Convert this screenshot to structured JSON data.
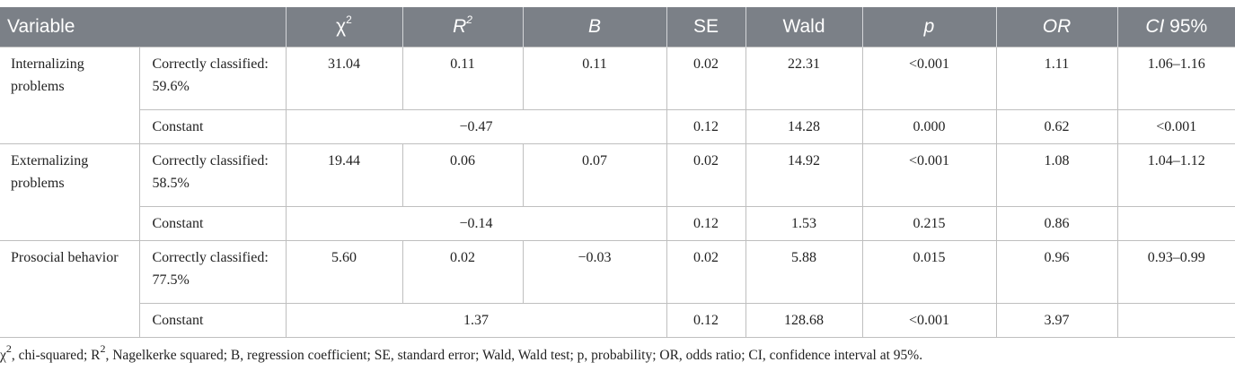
{
  "headers": {
    "variable": "Variable",
    "chi_symbol": "χ",
    "chi_sup": "2",
    "r_symbol": "R",
    "r_sup": "2",
    "b": "B",
    "se": "SE",
    "wald": "Wald",
    "p": "p",
    "or": "OR",
    "ci_italic": "CI",
    "ci_rest": " 95%"
  },
  "groups": [
    {
      "variable": "Internalizing problems",
      "row1": {
        "label": "Correctly classified: 59.6%",
        "chi2": "31.04",
        "r2": "0.11",
        "b": "0.11",
        "se": "0.02",
        "wald": "22.31",
        "p": "<0.001",
        "or": "1.11",
        "ci": "1.06–1.16"
      },
      "row2": {
        "label": "Constant",
        "b": "−0.47",
        "se": "0.12",
        "wald": "14.28",
        "p": "0.000",
        "or": "0.62",
        "ci": "<0.001"
      }
    },
    {
      "variable": "Externalizing problems",
      "row1": {
        "label": "Correctly classified: 58.5%",
        "chi2": "19.44",
        "r2": "0.06",
        "b": "0.07",
        "se": "0.02",
        "wald": "14.92",
        "p": "<0.001",
        "or": "1.08",
        "ci": "1.04–1.12"
      },
      "row2": {
        "label": "Constant",
        "b": "−0.14",
        "se": "0.12",
        "wald": "1.53",
        "p": "0.215",
        "or": "0.86",
        "ci": ""
      }
    },
    {
      "variable": "Prosocial behavior",
      "row1": {
        "label": "Correctly classified: 77.5%",
        "chi2": "5.60",
        "r2": "0.02",
        "b": "−0.03",
        "se": "0.02",
        "wald": "5.88",
        "p": "0.015",
        "or": "0.96",
        "ci": "0.93–0.99"
      },
      "row2": {
        "label": "Constant",
        "b": "1.37",
        "se": "0.12",
        "wald": "128.68",
        "p": "<0.001",
        "or": "3.97",
        "ci": ""
      }
    }
  ],
  "footnote": {
    "chi": "χ",
    "t1": ", chi-squared; R",
    "t2": ", Nagelkerke squared; B, regression coefficient; SE, standard error; Wald, Wald test; p, probability; OR, odds ratio; CI, confidence interval at 95%.",
    "sup": "2"
  },
  "colors": {
    "header_bg": "#7b8087",
    "header_text": "#ffffff",
    "rule": "#bfbfbf"
  }
}
